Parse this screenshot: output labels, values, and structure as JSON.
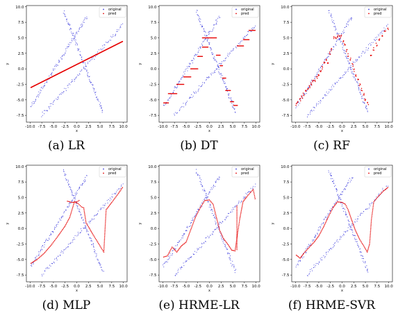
{
  "figure": {
    "series_colors": {
      "original": "#3b3bdc",
      "pred": "#e60000"
    }
  },
  "chart_data": [
    {
      "type": "scatter",
      "caption": "(a) LR",
      "xlabel": "x",
      "ylabel": "y",
      "xlim": [
        -10.8,
        10.8
      ],
      "ylim": [
        -8.6,
        10.2
      ],
      "xticks": [
        -10.0,
        -7.5,
        -5.0,
        -2.5,
        0.0,
        2.5,
        5.0,
        7.5,
        10.0
      ],
      "yticks": [
        -7.5,
        -5.0,
        -2.5,
        0.0,
        2.5,
        5.0,
        7.5,
        10.0
      ],
      "legend": {
        "position": "top-right",
        "entries": [
          "original",
          "pred"
        ]
      },
      "series": [
        {
          "name": "original",
          "kind": "points",
          "segments": [
            [
              [
                -9.8,
                -6.1
              ],
              [
                2.2,
                8.4
              ]
            ],
            [
              [
                -2.8,
                9.3
              ],
              [
                5.6,
                -7.0
              ]
            ],
            [
              [
                -7.5,
                -7.5
              ],
              [
                9.8,
                7.0
              ]
            ]
          ]
        },
        {
          "name": "pred",
          "kind": "dense-line",
          "points": [
            [
              -9.8,
              -3.0
            ],
            [
              9.8,
              4.4
            ]
          ]
        }
      ]
    },
    {
      "type": "scatter",
      "caption": "(b) DT",
      "xlabel": "x",
      "ylabel": "y",
      "xlim": [
        -10.8,
        10.8
      ],
      "ylim": [
        -8.6,
        10.2
      ],
      "xticks": [
        -10.0,
        -7.5,
        -5.0,
        -2.5,
        0.0,
        2.5,
        5.0,
        7.5,
        10.0
      ],
      "yticks": [
        -7.5,
        -5.0,
        -2.5,
        0.0,
        2.5,
        5.0,
        7.5,
        10.0
      ],
      "legend": {
        "position": "top-right",
        "entries": [
          "original",
          "pred"
        ]
      },
      "series": [
        {
          "name": "original",
          "kind": "points",
          "segments": [
            [
              [
                -9.8,
                -6.1
              ],
              [
                2.2,
                8.4
              ]
            ],
            [
              [
                -2.8,
                9.3
              ],
              [
                5.6,
                -7.0
              ]
            ],
            [
              [
                -7.5,
                -7.5
              ],
              [
                9.8,
                7.0
              ]
            ]
          ]
        },
        {
          "name": "pred",
          "kind": "steps",
          "steps": [
            [
              -9.8,
              -8.8,
              -5.5
            ],
            [
              -8.8,
              -7.0,
              -4.0
            ],
            [
              -7.0,
              -5.5,
              -2.5
            ],
            [
              -5.5,
              -4.0,
              -1.3
            ],
            [
              -4.0,
              -2.5,
              0.0
            ],
            [
              -2.5,
              -1.5,
              2.0
            ],
            [
              -1.5,
              -0.3,
              3.5
            ],
            [
              -1.5,
              1.5,
              5.0
            ],
            [
              1.5,
              2.3,
              2.2
            ],
            [
              2.3,
              2.8,
              0.5
            ],
            [
              2.8,
              3.5,
              -1.5
            ],
            [
              3.5,
              4.5,
              -3.5
            ],
            [
              4.5,
              5.2,
              -5.3
            ],
            [
              5.2,
              6.0,
              -5.9
            ],
            [
              6.0,
              7.3,
              3.7
            ],
            [
              7.3,
              8.5,
              4.7
            ],
            [
              8.5,
              9.8,
              6.2
            ]
          ]
        }
      ]
    },
    {
      "type": "scatter",
      "caption": "(c) RF",
      "xlabel": "x",
      "ylabel": "y",
      "xlim": [
        -10.8,
        10.8
      ],
      "ylim": [
        -8.6,
        10.2
      ],
      "xticks": [
        -10.0,
        -7.5,
        -5.0,
        -2.5,
        0.0,
        2.5,
        5.0,
        7.5,
        10.0
      ],
      "yticks": [
        -7.5,
        -5.0,
        -2.5,
        0.0,
        2.5,
        5.0,
        7.5,
        10.0
      ],
      "legend": {
        "position": "top-right",
        "entries": [
          "original",
          "pred"
        ]
      },
      "series": [
        {
          "name": "original",
          "kind": "points",
          "segments": [
            [
              [
                -9.8,
                -6.1
              ],
              [
                2.2,
                8.4
              ]
            ],
            [
              [
                -2.8,
                9.3
              ],
              [
                5.6,
                -7.0
              ]
            ],
            [
              [
                -7.5,
                -7.5
              ],
              [
                9.8,
                7.0
              ]
            ]
          ]
        },
        {
          "name": "pred",
          "kind": "points",
          "points": [
            [
              -9.8,
              -5.8
            ],
            [
              -9.5,
              -5.4
            ],
            [
              -9.0,
              -5.0
            ],
            [
              -8.6,
              -4.6
            ],
            [
              -8.2,
              -4.1
            ],
            [
              -7.8,
              -3.7
            ],
            [
              -7.4,
              -3.2
            ],
            [
              -7.0,
              -2.9
            ],
            [
              -6.6,
              -2.5
            ],
            [
              -6.2,
              -2.1
            ],
            [
              -5.8,
              -1.8
            ],
            [
              -5.4,
              -1.4
            ],
            [
              -5.0,
              -1.0
            ],
            [
              -4.6,
              -0.4
            ],
            [
              -4.2,
              0.2
            ],
            [
              -3.8,
              0.9
            ],
            [
              -3.4,
              1.3
            ],
            [
              -3.0,
              1.0
            ],
            [
              -2.6,
              2.5
            ],
            [
              -2.2,
              3.1
            ],
            [
              -1.8,
              4.9
            ],
            [
              -1.4,
              5.1
            ],
            [
              -1.0,
              5.2
            ],
            [
              -0.6,
              5.3
            ],
            [
              -0.2,
              5.2
            ],
            [
              0.2,
              4.6
            ],
            [
              0.6,
              3.8
            ],
            [
              1.0,
              3.0
            ],
            [
              1.4,
              2.2
            ],
            [
              1.8,
              1.5
            ],
            [
              2.2,
              0.6
            ],
            [
              2.6,
              -0.2
            ],
            [
              3.0,
              -1.0
            ],
            [
              3.4,
              -1.8
            ],
            [
              3.8,
              -2.6
            ],
            [
              4.2,
              -3.3
            ],
            [
              4.6,
              -4.2
            ],
            [
              5.0,
              -5.0
            ],
            [
              5.5,
              -5.6
            ],
            [
              6.2,
              2.3
            ],
            [
              6.8,
              3.2
            ],
            [
              7.4,
              3.9
            ],
            [
              8.0,
              4.6
            ],
            [
              8.6,
              5.3
            ],
            [
              9.2,
              5.9
            ],
            [
              9.8,
              6.5
            ]
          ]
        }
      ]
    },
    {
      "type": "scatter",
      "caption": "(d) MLP",
      "xlabel": "x",
      "ylabel": "y",
      "xlim": [
        -10.8,
        10.8
      ],
      "ylim": [
        -8.6,
        10.2
      ],
      "xticks": [
        -10.0,
        -7.5,
        -5.0,
        -2.5,
        0.0,
        2.5,
        5.0,
        7.5,
        10.0
      ],
      "yticks": [
        -7.5,
        -5.0,
        -2.5,
        0.0,
        2.5,
        5.0,
        7.5,
        10.0
      ],
      "legend": {
        "position": "top-right",
        "entries": [
          "original",
          "pred"
        ]
      },
      "series": [
        {
          "name": "original",
          "kind": "points",
          "segments": [
            [
              [
                -9.8,
                -6.1
              ],
              [
                2.2,
                8.4
              ]
            ],
            [
              [
                -2.8,
                9.3
              ],
              [
                5.6,
                -7.0
              ]
            ],
            [
              [
                -7.5,
                -7.5
              ],
              [
                9.8,
                7.0
              ]
            ]
          ]
        },
        {
          "name": "pred",
          "kind": "curves",
          "curves": [
            [
              [
                -9.8,
                -5.6
              ],
              [
                -8.5,
                -5.0
              ],
              [
                -7.0,
                -4.0
              ],
              [
                -5.5,
                -2.7
              ],
              [
                -4.0,
                -1.2
              ],
              [
                -2.5,
                0.4
              ],
              [
                -1.5,
                1.8
              ],
              [
                -0.5,
                4.3
              ],
              [
                0.3,
                4.0
              ],
              [
                1.0,
                3.5
              ],
              [
                1.5,
                3.3
              ],
              [
                2.0,
                0.9
              ],
              [
                2.5,
                0.3
              ],
              [
                3.5,
                -1.0
              ],
              [
                4.5,
                -2.2
              ],
              [
                5.3,
                -3.2
              ],
              [
                5.8,
                -3.8
              ],
              [
                6.3,
                3.0
              ],
              [
                7.5,
                4.2
              ],
              [
                8.8,
                5.5
              ],
              [
                9.8,
                6.6
              ]
            ],
            [
              [
                -2.0,
                4.4
              ],
              [
                -1.0,
                4.2
              ],
              [
                0.0,
                4.3
              ],
              [
                0.5,
                4.5
              ]
            ]
          ]
        }
      ]
    },
    {
      "type": "scatter",
      "caption": "(e) HRME-LR",
      "xlabel": "x",
      "ylabel": "y",
      "xlim": [
        -10.8,
        10.8
      ],
      "ylim": [
        -8.6,
        10.2
      ],
      "xticks": [
        -10.0,
        -7.5,
        -5.0,
        -2.5,
        0.0,
        2.5,
        5.0,
        7.5,
        10.0
      ],
      "yticks": [
        -7.5,
        -5.0,
        -2.5,
        0.0,
        2.5,
        5.0,
        7.5,
        10.0
      ],
      "legend": {
        "position": "top-right",
        "entries": [
          "original",
          "pred"
        ]
      },
      "series": [
        {
          "name": "original",
          "kind": "points",
          "segments": [
            [
              [
                -9.8,
                -6.1
              ],
              [
                2.2,
                8.4
              ]
            ],
            [
              [
                -2.8,
                9.3
              ],
              [
                5.6,
                -7.0
              ]
            ],
            [
              [
                -7.5,
                -7.5
              ],
              [
                9.8,
                7.0
              ]
            ]
          ]
        },
        {
          "name": "pred",
          "kind": "curves",
          "curves": [
            [
              [
                -9.8,
                -4.6
              ],
              [
                -9.0,
                -4.4
              ],
              [
                -8.0,
                -3.0
              ],
              [
                -7.0,
                -3.8
              ],
              [
                -6.0,
                -2.8
              ],
              [
                -5.0,
                -2.2
              ],
              [
                -4.0,
                -0.2
              ],
              [
                -3.0,
                1.8
              ],
              [
                -2.0,
                3.3
              ],
              [
                -1.0,
                4.5
              ],
              [
                0.0,
                4.6
              ],
              [
                0.8,
                3.9
              ],
              [
                1.5,
                1.8
              ],
              [
                2.2,
                -0.3
              ],
              [
                3.0,
                -1.6
              ],
              [
                4.0,
                -2.6
              ],
              [
                4.8,
                -3.5
              ],
              [
                5.5,
                -3.6
              ],
              [
                6.0,
                -1.0
              ],
              [
                6.5,
                1.5
              ],
              [
                7.2,
                4.3
              ],
              [
                8.0,
                5.1
              ],
              [
                8.8,
                5.8
              ],
              [
                9.4,
                6.3
              ],
              [
                9.8,
                4.8
              ]
            ],
            [
              [
                5.9,
                -3.4
              ],
              [
                5.9,
                3.6
              ]
            ]
          ]
        }
      ]
    },
    {
      "type": "scatter",
      "caption": "(f) HRME-SVR",
      "xlabel": "x",
      "ylabel": "y",
      "xlim": [
        -10.8,
        10.8
      ],
      "ylim": [
        -8.6,
        10.2
      ],
      "xticks": [
        -10.0,
        -7.5,
        -5.0,
        -2.5,
        0.0,
        2.5,
        5.0,
        7.5,
        10.0
      ],
      "yticks": [
        -7.5,
        -5.0,
        -2.5,
        0.0,
        2.5,
        5.0,
        7.5,
        10.0
      ],
      "legend": {
        "position": "top-right",
        "entries": [
          "original",
          "pred"
        ]
      },
      "series": [
        {
          "name": "original",
          "kind": "points",
          "segments": [
            [
              [
                -9.8,
                -6.1
              ],
              [
                2.2,
                8.4
              ]
            ],
            [
              [
                -2.8,
                9.3
              ],
              [
                5.6,
                -7.0
              ]
            ],
            [
              [
                -7.5,
                -7.5
              ],
              [
                9.8,
                7.0
              ]
            ]
          ]
        },
        {
          "name": "pred",
          "kind": "curves",
          "curves": [
            [
              [
                -9.8,
                -4.3
              ],
              [
                -9.0,
                -4.8
              ],
              [
                -8.2,
                -4.0
              ],
              [
                -7.0,
                -3.0
              ],
              [
                -6.0,
                -2.2
              ],
              [
                -5.0,
                -1.2
              ],
              [
                -4.0,
                0.2
              ],
              [
                -3.0,
                1.8
              ],
              [
                -2.0,
                3.3
              ],
              [
                -1.0,
                4.3
              ],
              [
                0.0,
                4.2
              ],
              [
                0.7,
                3.9
              ],
              [
                1.3,
                3.0
              ],
              [
                2.0,
                1.5
              ],
              [
                2.8,
                -0.2
              ],
              [
                3.8,
                -1.8
              ],
              [
                4.8,
                -3.0
              ],
              [
                5.4,
                -3.8
              ],
              [
                5.9,
                -2.5
              ],
              [
                6.3,
                1.5
              ],
              [
                6.8,
                4.3
              ],
              [
                7.8,
                5.2
              ],
              [
                8.8,
                6.0
              ],
              [
                9.8,
                6.6
              ]
            ]
          ]
        }
      ]
    }
  ]
}
